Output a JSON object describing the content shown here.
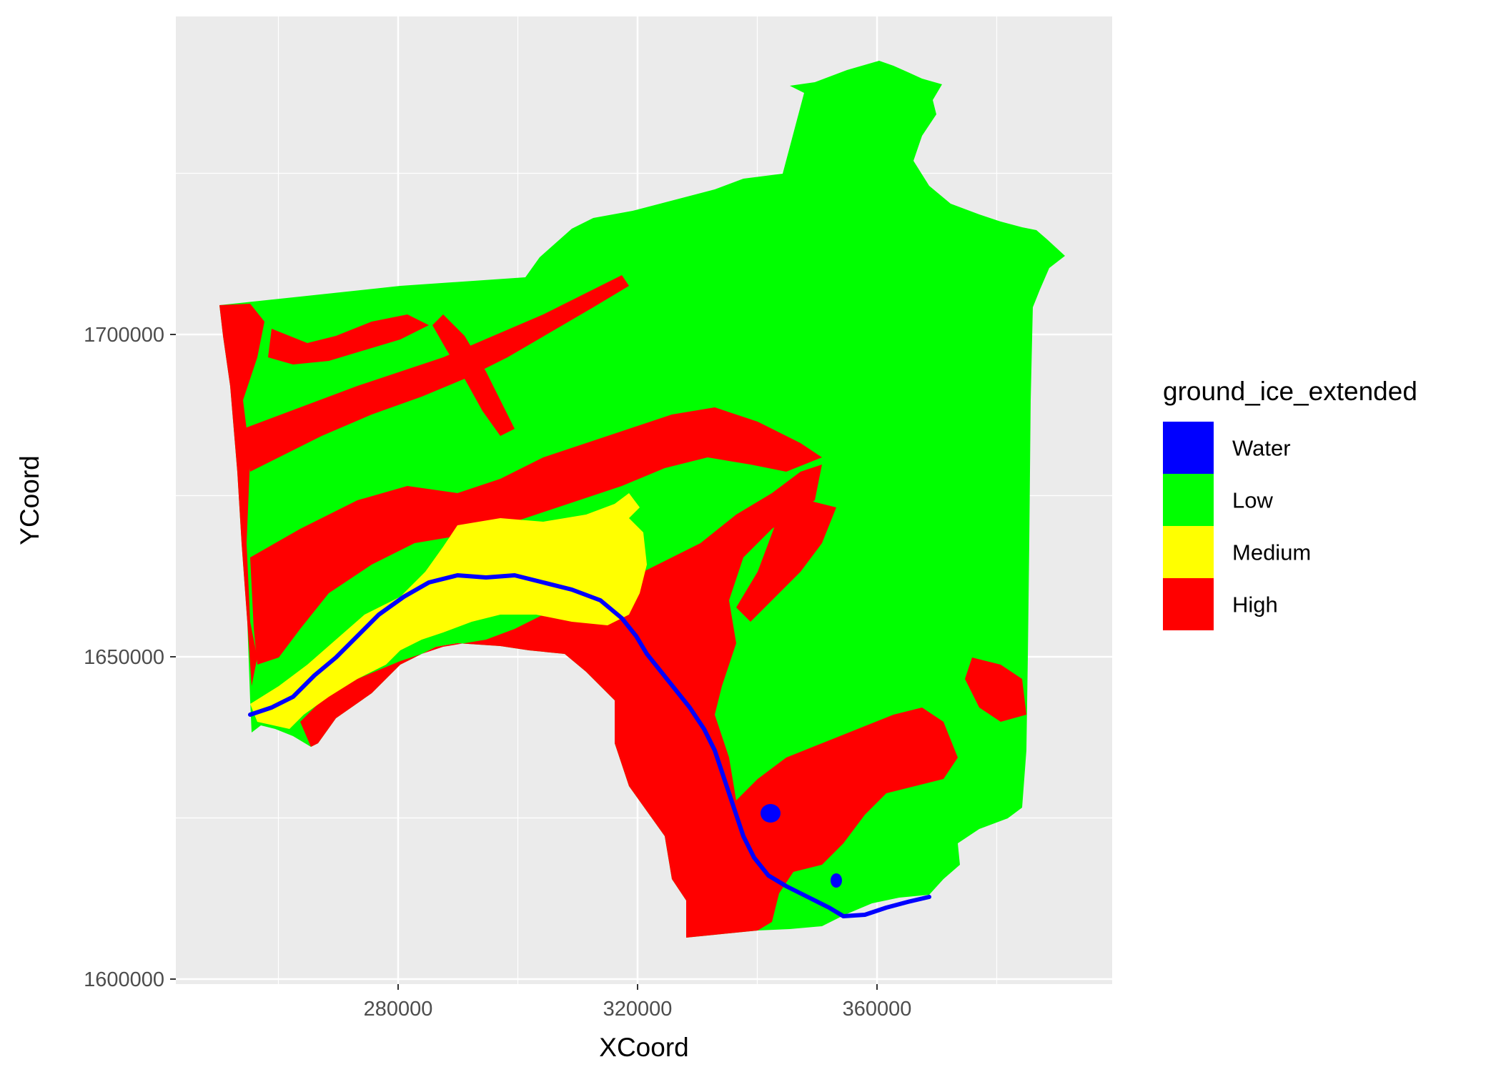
{
  "chart_data": {
    "type": "heatmap",
    "xlabel": "XCoord",
    "ylabel": "YCoord",
    "xlim": [
      250000,
      400000
    ],
    "ylim": [
      1599000,
      1750000
    ],
    "x_ticks": [
      {
        "value": 280000,
        "label": "280000"
      },
      {
        "value": 320000,
        "label": "320000"
      },
      {
        "value": 360000,
        "label": "360000"
      }
    ],
    "y_ticks": [
      {
        "value": 1600000,
        "label": "1600000"
      },
      {
        "value": 1650000,
        "label": "1650000"
      },
      {
        "value": 1700000,
        "label": "1700000"
      }
    ],
    "grid": true,
    "legend": {
      "title": "ground_ice_extended",
      "position": "right",
      "entries": [
        {
          "label": "Water",
          "color": "#0000ff"
        },
        {
          "label": "Low",
          "color": "#00ff00"
        },
        {
          "label": "Medium",
          "color": "#ffff00"
        },
        {
          "label": "High",
          "color": "#ff0000"
        }
      ]
    },
    "panel_background": "#ebebeb",
    "grid_color": "#ffffff"
  }
}
